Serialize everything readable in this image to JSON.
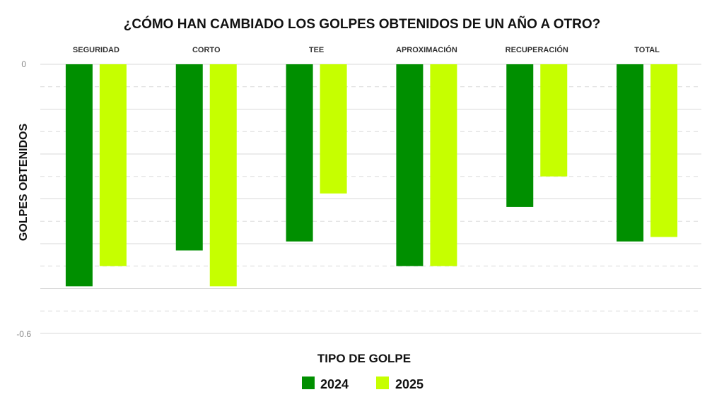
{
  "chart_data": {
    "type": "bar",
    "title": "¿CÓMO HAN CAMBIADO LOS GOLPES OBTENIDOS DE UN AÑO A OTRO?",
    "xlabel": "TIPO DE GOLPE",
    "ylabel": "GOLPES OBTENIDOS",
    "categories": [
      "SEGURIDAD",
      "CORTO",
      "TEE",
      "APROXIMACIÓN",
      "RECUPERACIÓN",
      "TOTAL"
    ],
    "series": [
      {
        "name": "2024",
        "color": "#008f00",
        "values": [
          -0.495,
          -0.415,
          -0.395,
          -0.45,
          -0.318,
          -0.395
        ]
      },
      {
        "name": "2025",
        "color": "#c6ff00",
        "values": [
          -0.45,
          -0.495,
          -0.288,
          -0.45,
          -0.25,
          -0.385
        ]
      }
    ],
    "ylim": [
      -0.6,
      0
    ],
    "yticks": [
      "0",
      "-0.6"
    ],
    "grid": true,
    "legend_position": "bottom-center"
  }
}
